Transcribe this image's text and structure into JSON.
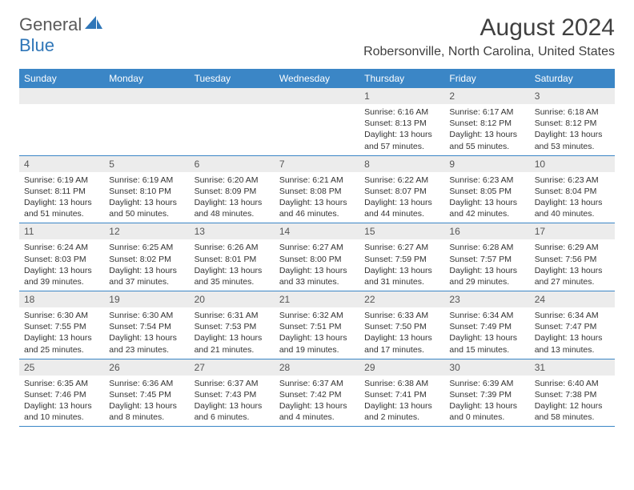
{
  "logo": {
    "part1": "General",
    "part2": "Blue"
  },
  "title": "August 2024",
  "location": "Robersonville, North Carolina, United States",
  "colors": {
    "header_bg": "#3b86c6",
    "daynum_bg": "#ececec",
    "text": "#333333",
    "title_text": "#404040"
  },
  "day_names": [
    "Sunday",
    "Monday",
    "Tuesday",
    "Wednesday",
    "Thursday",
    "Friday",
    "Saturday"
  ],
  "weeks": [
    [
      {
        "n": "",
        "sr": "",
        "ss": "",
        "dl": ""
      },
      {
        "n": "",
        "sr": "",
        "ss": "",
        "dl": ""
      },
      {
        "n": "",
        "sr": "",
        "ss": "",
        "dl": ""
      },
      {
        "n": "",
        "sr": "",
        "ss": "",
        "dl": ""
      },
      {
        "n": "1",
        "sr": "Sunrise: 6:16 AM",
        "ss": "Sunset: 8:13 PM",
        "dl": "Daylight: 13 hours and 57 minutes."
      },
      {
        "n": "2",
        "sr": "Sunrise: 6:17 AM",
        "ss": "Sunset: 8:12 PM",
        "dl": "Daylight: 13 hours and 55 minutes."
      },
      {
        "n": "3",
        "sr": "Sunrise: 6:18 AM",
        "ss": "Sunset: 8:12 PM",
        "dl": "Daylight: 13 hours and 53 minutes."
      }
    ],
    [
      {
        "n": "4",
        "sr": "Sunrise: 6:19 AM",
        "ss": "Sunset: 8:11 PM",
        "dl": "Daylight: 13 hours and 51 minutes."
      },
      {
        "n": "5",
        "sr": "Sunrise: 6:19 AM",
        "ss": "Sunset: 8:10 PM",
        "dl": "Daylight: 13 hours and 50 minutes."
      },
      {
        "n": "6",
        "sr": "Sunrise: 6:20 AM",
        "ss": "Sunset: 8:09 PM",
        "dl": "Daylight: 13 hours and 48 minutes."
      },
      {
        "n": "7",
        "sr": "Sunrise: 6:21 AM",
        "ss": "Sunset: 8:08 PM",
        "dl": "Daylight: 13 hours and 46 minutes."
      },
      {
        "n": "8",
        "sr": "Sunrise: 6:22 AM",
        "ss": "Sunset: 8:07 PM",
        "dl": "Daylight: 13 hours and 44 minutes."
      },
      {
        "n": "9",
        "sr": "Sunrise: 6:23 AM",
        "ss": "Sunset: 8:05 PM",
        "dl": "Daylight: 13 hours and 42 minutes."
      },
      {
        "n": "10",
        "sr": "Sunrise: 6:23 AM",
        "ss": "Sunset: 8:04 PM",
        "dl": "Daylight: 13 hours and 40 minutes."
      }
    ],
    [
      {
        "n": "11",
        "sr": "Sunrise: 6:24 AM",
        "ss": "Sunset: 8:03 PM",
        "dl": "Daylight: 13 hours and 39 minutes."
      },
      {
        "n": "12",
        "sr": "Sunrise: 6:25 AM",
        "ss": "Sunset: 8:02 PM",
        "dl": "Daylight: 13 hours and 37 minutes."
      },
      {
        "n": "13",
        "sr": "Sunrise: 6:26 AM",
        "ss": "Sunset: 8:01 PM",
        "dl": "Daylight: 13 hours and 35 minutes."
      },
      {
        "n": "14",
        "sr": "Sunrise: 6:27 AM",
        "ss": "Sunset: 8:00 PM",
        "dl": "Daylight: 13 hours and 33 minutes."
      },
      {
        "n": "15",
        "sr": "Sunrise: 6:27 AM",
        "ss": "Sunset: 7:59 PM",
        "dl": "Daylight: 13 hours and 31 minutes."
      },
      {
        "n": "16",
        "sr": "Sunrise: 6:28 AM",
        "ss": "Sunset: 7:57 PM",
        "dl": "Daylight: 13 hours and 29 minutes."
      },
      {
        "n": "17",
        "sr": "Sunrise: 6:29 AM",
        "ss": "Sunset: 7:56 PM",
        "dl": "Daylight: 13 hours and 27 minutes."
      }
    ],
    [
      {
        "n": "18",
        "sr": "Sunrise: 6:30 AM",
        "ss": "Sunset: 7:55 PM",
        "dl": "Daylight: 13 hours and 25 minutes."
      },
      {
        "n": "19",
        "sr": "Sunrise: 6:30 AM",
        "ss": "Sunset: 7:54 PM",
        "dl": "Daylight: 13 hours and 23 minutes."
      },
      {
        "n": "20",
        "sr": "Sunrise: 6:31 AM",
        "ss": "Sunset: 7:53 PM",
        "dl": "Daylight: 13 hours and 21 minutes."
      },
      {
        "n": "21",
        "sr": "Sunrise: 6:32 AM",
        "ss": "Sunset: 7:51 PM",
        "dl": "Daylight: 13 hours and 19 minutes."
      },
      {
        "n": "22",
        "sr": "Sunrise: 6:33 AM",
        "ss": "Sunset: 7:50 PM",
        "dl": "Daylight: 13 hours and 17 minutes."
      },
      {
        "n": "23",
        "sr": "Sunrise: 6:34 AM",
        "ss": "Sunset: 7:49 PM",
        "dl": "Daylight: 13 hours and 15 minutes."
      },
      {
        "n": "24",
        "sr": "Sunrise: 6:34 AM",
        "ss": "Sunset: 7:47 PM",
        "dl": "Daylight: 13 hours and 13 minutes."
      }
    ],
    [
      {
        "n": "25",
        "sr": "Sunrise: 6:35 AM",
        "ss": "Sunset: 7:46 PM",
        "dl": "Daylight: 13 hours and 10 minutes."
      },
      {
        "n": "26",
        "sr": "Sunrise: 6:36 AM",
        "ss": "Sunset: 7:45 PM",
        "dl": "Daylight: 13 hours and 8 minutes."
      },
      {
        "n": "27",
        "sr": "Sunrise: 6:37 AM",
        "ss": "Sunset: 7:43 PM",
        "dl": "Daylight: 13 hours and 6 minutes."
      },
      {
        "n": "28",
        "sr": "Sunrise: 6:37 AM",
        "ss": "Sunset: 7:42 PM",
        "dl": "Daylight: 13 hours and 4 minutes."
      },
      {
        "n": "29",
        "sr": "Sunrise: 6:38 AM",
        "ss": "Sunset: 7:41 PM",
        "dl": "Daylight: 13 hours and 2 minutes."
      },
      {
        "n": "30",
        "sr": "Sunrise: 6:39 AM",
        "ss": "Sunset: 7:39 PM",
        "dl": "Daylight: 13 hours and 0 minutes."
      },
      {
        "n": "31",
        "sr": "Sunrise: 6:40 AM",
        "ss": "Sunset: 7:38 PM",
        "dl": "Daylight: 12 hours and 58 minutes."
      }
    ]
  ]
}
